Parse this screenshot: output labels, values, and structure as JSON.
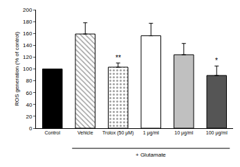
{
  "chart_data": {
    "type": "bar",
    "y_label": "ROS generation (% of control)",
    "categories": [
      "Control",
      "Vehicle",
      "Trolox (50 μM)",
      "1 μg/ml",
      "10 μg/ml",
      "100 μg/ml"
    ],
    "values": [
      100,
      159,
      103,
      156,
      124,
      89
    ],
    "errors": [
      0,
      19,
      7,
      21,
      19,
      16
    ],
    "colors": [
      "#000000",
      "#ffffff",
      "#ffffff",
      "#ffffff",
      "#c0c0c0",
      "#555555"
    ],
    "ylim": [
      0,
      200
    ],
    "yticks": [
      0,
      20,
      40,
      60,
      80,
      100,
      120,
      140,
      160,
      180,
      200
    ],
    "grid": false,
    "annotations": [
      {
        "category": "Trolox (50 μM)",
        "text": "**"
      },
      {
        "category": "100 μg/ml",
        "text": "*"
      }
    ],
    "group_label": {
      "text": "+ Glutamate",
      "categories": [
        "Vehicle",
        "Trolox (50 μM)",
        "1 μg/ml",
        "10 μg/ml",
        "100 μg/ml"
      ]
    }
  }
}
